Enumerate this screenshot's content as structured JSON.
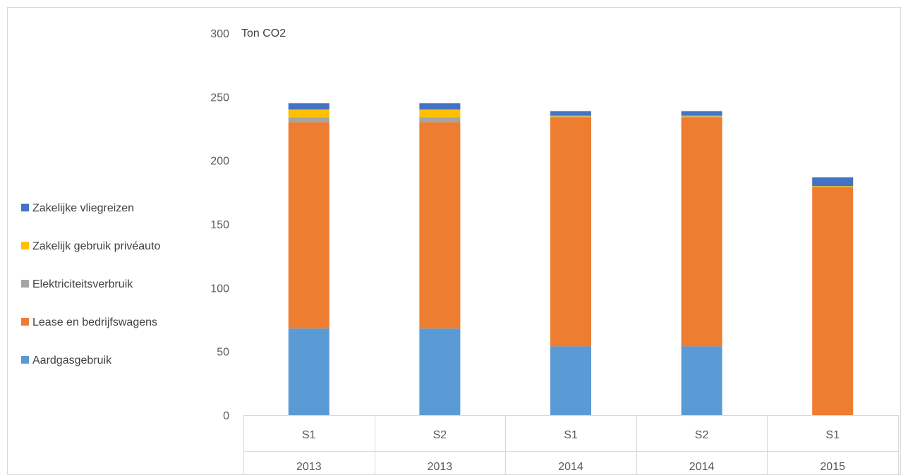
{
  "chart_data": {
    "type": "bar",
    "stacked": true,
    "unit_label": "Ton CO2",
    "ylim": [
      0,
      300
    ],
    "yticks": [
      0,
      50,
      100,
      150,
      200,
      250,
      300
    ],
    "categories": [
      {
        "period": "S1",
        "year": "2013"
      },
      {
        "period": "S2",
        "year": "2013"
      },
      {
        "period": "S1",
        "year": "2014"
      },
      {
        "period": "S2",
        "year": "2014"
      },
      {
        "period": "S1",
        "year": "2015"
      }
    ],
    "series": [
      {
        "name": "Aardgasgebruik",
        "color": "#5B9BD5",
        "values": [
          68,
          68,
          54,
          54,
          0
        ]
      },
      {
        "name": "Lease en bedrijfswagens",
        "color": "#ED7D31",
        "values": [
          162,
          162,
          180,
          180,
          179
        ]
      },
      {
        "name": "Elektriciteitsverbruik",
        "color": "#A5A5A5",
        "values": [
          4,
          4,
          0.5,
          0.5,
          0.3
        ]
      },
      {
        "name": "Zakelijk gebruik privéauto",
        "color": "#FFC000",
        "values": [
          6,
          6,
          0.7,
          0.7,
          0.5
        ]
      },
      {
        "name": "Zakelijke vliegreizen",
        "color": "#4472C4",
        "values": [
          5,
          5,
          3.5,
          3.5,
          7
        ]
      }
    ],
    "legend_position": "left",
    "legend_order": [
      "Zakelijke vliegreizen",
      "Zakelijk gebruik privéauto",
      "Elektriciteitsverbruik",
      "Lease en bedrijfswagens",
      "Aardgasgebruik"
    ],
    "grid": false
  }
}
